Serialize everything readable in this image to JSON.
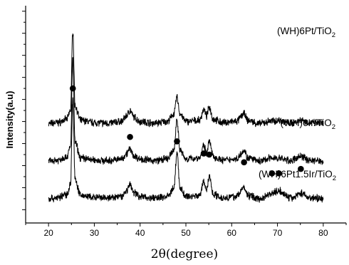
{
  "chart_data": {
    "type": "line",
    "xlabel": "2θ(degree)",
    "ylabel": "Intensity(a.u)",
    "xlim": [
      15,
      85
    ],
    "x_ticks": [
      20,
      30,
      40,
      50,
      60,
      70,
      80
    ],
    "y_tick_labels": false,
    "grid": false,
    "series": [
      {
        "name": "(WH)6Pt/TiO2",
        "label_main": "(WH)6Pt/TiO",
        "label_sub": "2",
        "baseline": 6.8,
        "points": [
          [
            20,
            1.0
          ],
          [
            22,
            1.1
          ],
          [
            24,
            1.4
          ],
          [
            24.8,
            2.2
          ],
          [
            25.3,
            9.5
          ],
          [
            25.8,
            2.6
          ],
          [
            27,
            1.3
          ],
          [
            30,
            1.1
          ],
          [
            33,
            1.05
          ],
          [
            36,
            1.2
          ],
          [
            37,
            1.7
          ],
          [
            37.8,
            2.2
          ],
          [
            38.6,
            1.6
          ],
          [
            40,
            1.2
          ],
          [
            43,
            1.05
          ],
          [
            46,
            1.2
          ],
          [
            47.4,
            1.9
          ],
          [
            48.05,
            3.4
          ],
          [
            48.7,
            1.9
          ],
          [
            50,
            1.2
          ],
          [
            53,
            1.3
          ],
          [
            53.9,
            2.3
          ],
          [
            54.5,
            1.7
          ],
          [
            55.1,
            2.5
          ],
          [
            56,
            1.4
          ],
          [
            58,
            1.1
          ],
          [
            61,
            1.2
          ],
          [
            62.7,
            1.9
          ],
          [
            63.5,
            1.3
          ],
          [
            66,
            1.0
          ],
          [
            68.8,
            1.25
          ],
          [
            70.3,
            1.3
          ],
          [
            73,
            1.05
          ],
          [
            75.1,
            1.35
          ],
          [
            77,
            1.1
          ],
          [
            80,
            1.0
          ]
        ]
      },
      {
        "name": "(WH)6Ir/TiO2",
        "label_main": "(WH)6Ir/TiO",
        "label_sub": "2",
        "baseline": 3.4,
        "points": [
          [
            20,
            1.0
          ],
          [
            22,
            1.1
          ],
          [
            24,
            1.4
          ],
          [
            24.8,
            2.3
          ],
          [
            25.3,
            10.2
          ],
          [
            25.8,
            2.7
          ],
          [
            27,
            1.3
          ],
          [
            30,
            1.1
          ],
          [
            33,
            1.05
          ],
          [
            36,
            1.2
          ],
          [
            37,
            1.7
          ],
          [
            37.8,
            2.1
          ],
          [
            38.6,
            1.5
          ],
          [
            40,
            1.2
          ],
          [
            43,
            1.05
          ],
          [
            46,
            1.2
          ],
          [
            47.4,
            2.0
          ],
          [
            48.05,
            4.8
          ],
          [
            48.7,
            2.0
          ],
          [
            50,
            1.2
          ],
          [
            53,
            1.3
          ],
          [
            53.9,
            2.4
          ],
          [
            54.5,
            1.8
          ],
          [
            55.1,
            2.8
          ],
          [
            56,
            1.4
          ],
          [
            58,
            1.1
          ],
          [
            61,
            1.2
          ],
          [
            62.7,
            2.0
          ],
          [
            63.5,
            1.3
          ],
          [
            66,
            1.0
          ],
          [
            68.8,
            1.3
          ],
          [
            70.3,
            1.25
          ],
          [
            73,
            1.05
          ],
          [
            75.1,
            1.45
          ],
          [
            77,
            1.1
          ],
          [
            80,
            1.0
          ]
        ]
      },
      {
        "name": "(WH)6Pt1.5Ir/TiO2",
        "label_main": "(WH)6Pt1.5Ir/TiO",
        "label_sub": "2",
        "baseline": 0,
        "points": [
          [
            20,
            1.0
          ],
          [
            22,
            1.1
          ],
          [
            24,
            1.4
          ],
          [
            24.8,
            2.3
          ],
          [
            25.3,
            10.0
          ],
          [
            25.8,
            2.7
          ],
          [
            27,
            1.3
          ],
          [
            30,
            1.1
          ],
          [
            33,
            1.05
          ],
          [
            36,
            1.2
          ],
          [
            37,
            1.7
          ],
          [
            37.8,
            2.3
          ],
          [
            38.6,
            1.6
          ],
          [
            40,
            1.2
          ],
          [
            43,
            1.05
          ],
          [
            46,
            1.2
          ],
          [
            47.4,
            2.0
          ],
          [
            48.05,
            5.2
          ],
          [
            48.7,
            2.0
          ],
          [
            50,
            1.2
          ],
          [
            53,
            1.3
          ],
          [
            53.9,
            2.5
          ],
          [
            54.5,
            1.8
          ],
          [
            55.1,
            3.0
          ],
          [
            56,
            1.4
          ],
          [
            58,
            1.1
          ],
          [
            61,
            1.2
          ],
          [
            62.7,
            2.0
          ],
          [
            63.5,
            1.3
          ],
          [
            66,
            1.0
          ],
          [
            68.8,
            1.5
          ],
          [
            70.3,
            1.7
          ],
          [
            73,
            1.05
          ],
          [
            75.1,
            1.5
          ],
          [
            77,
            1.1
          ],
          [
            80,
            1.0
          ]
        ]
      }
    ],
    "markers": [
      25.3,
      37.8,
      48.05,
      53.9,
      55.1,
      62.7,
      68.8,
      70.3,
      75.1
    ],
    "marker_levels": [
      11.0,
      6.6,
      6.2,
      5.1,
      5.0,
      4.3,
      3.3,
      3.3,
      3.7
    ]
  }
}
